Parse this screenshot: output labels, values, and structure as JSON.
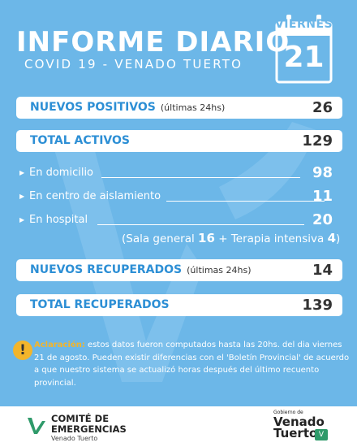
{
  "header": {
    "title": "INFORME DIARIO",
    "subtitle": "COVID 19 - VENADO TUERTO"
  },
  "calendar": {
    "day_name": "VIERNES",
    "day_number": "21"
  },
  "stats": {
    "nuevos_positivos": {
      "label": "NUEVOS POSITIVOS",
      "sub": "(últimas 24hs)",
      "value": "26"
    },
    "total_activos": {
      "label": "TOTAL ACTIVOS",
      "value": "129"
    },
    "breakdown": [
      {
        "label": "En domicilio",
        "value": "98"
      },
      {
        "label": "En centro de aislamiento",
        "value": "11"
      },
      {
        "label": "En hospital",
        "value": "20"
      }
    ],
    "hospital_detail": {
      "sala_label": "(Sala general",
      "sala_value": "16",
      "plus": "+",
      "terapia_label": "Terapia intensiva",
      "terapia_value": "4",
      "close": ")"
    },
    "nuevos_recuperados": {
      "label": "NUEVOS RECUPERADOS",
      "sub": "(últimas 24hs)",
      "value": "14"
    },
    "total_recuperados": {
      "label": "TOTAL RECUPERADOS",
      "value": "139"
    }
  },
  "note": {
    "icon": "warning-icon",
    "bold": "Aclaración:",
    "text": " estos datos fueron computados hasta las 20hs. del dia viernes 21 de agosto. Pueden existir diferencias con el 'Boletín Provincial' de acuerdo a que nuestro sistema se actualizó horas después del último recuento provincial."
  },
  "footer": {
    "left_line1": "COMITÉ DE",
    "left_line2": "EMERGENCIAS",
    "left_line3": "Venado Tuerto",
    "right_small": "Gobierno de",
    "right_line1": "Venado",
    "right_line2": "Tuerto"
  },
  "colors": {
    "background": "#6cb7e8",
    "accent": "#2d8fd5",
    "warning": "#f3b52b"
  }
}
